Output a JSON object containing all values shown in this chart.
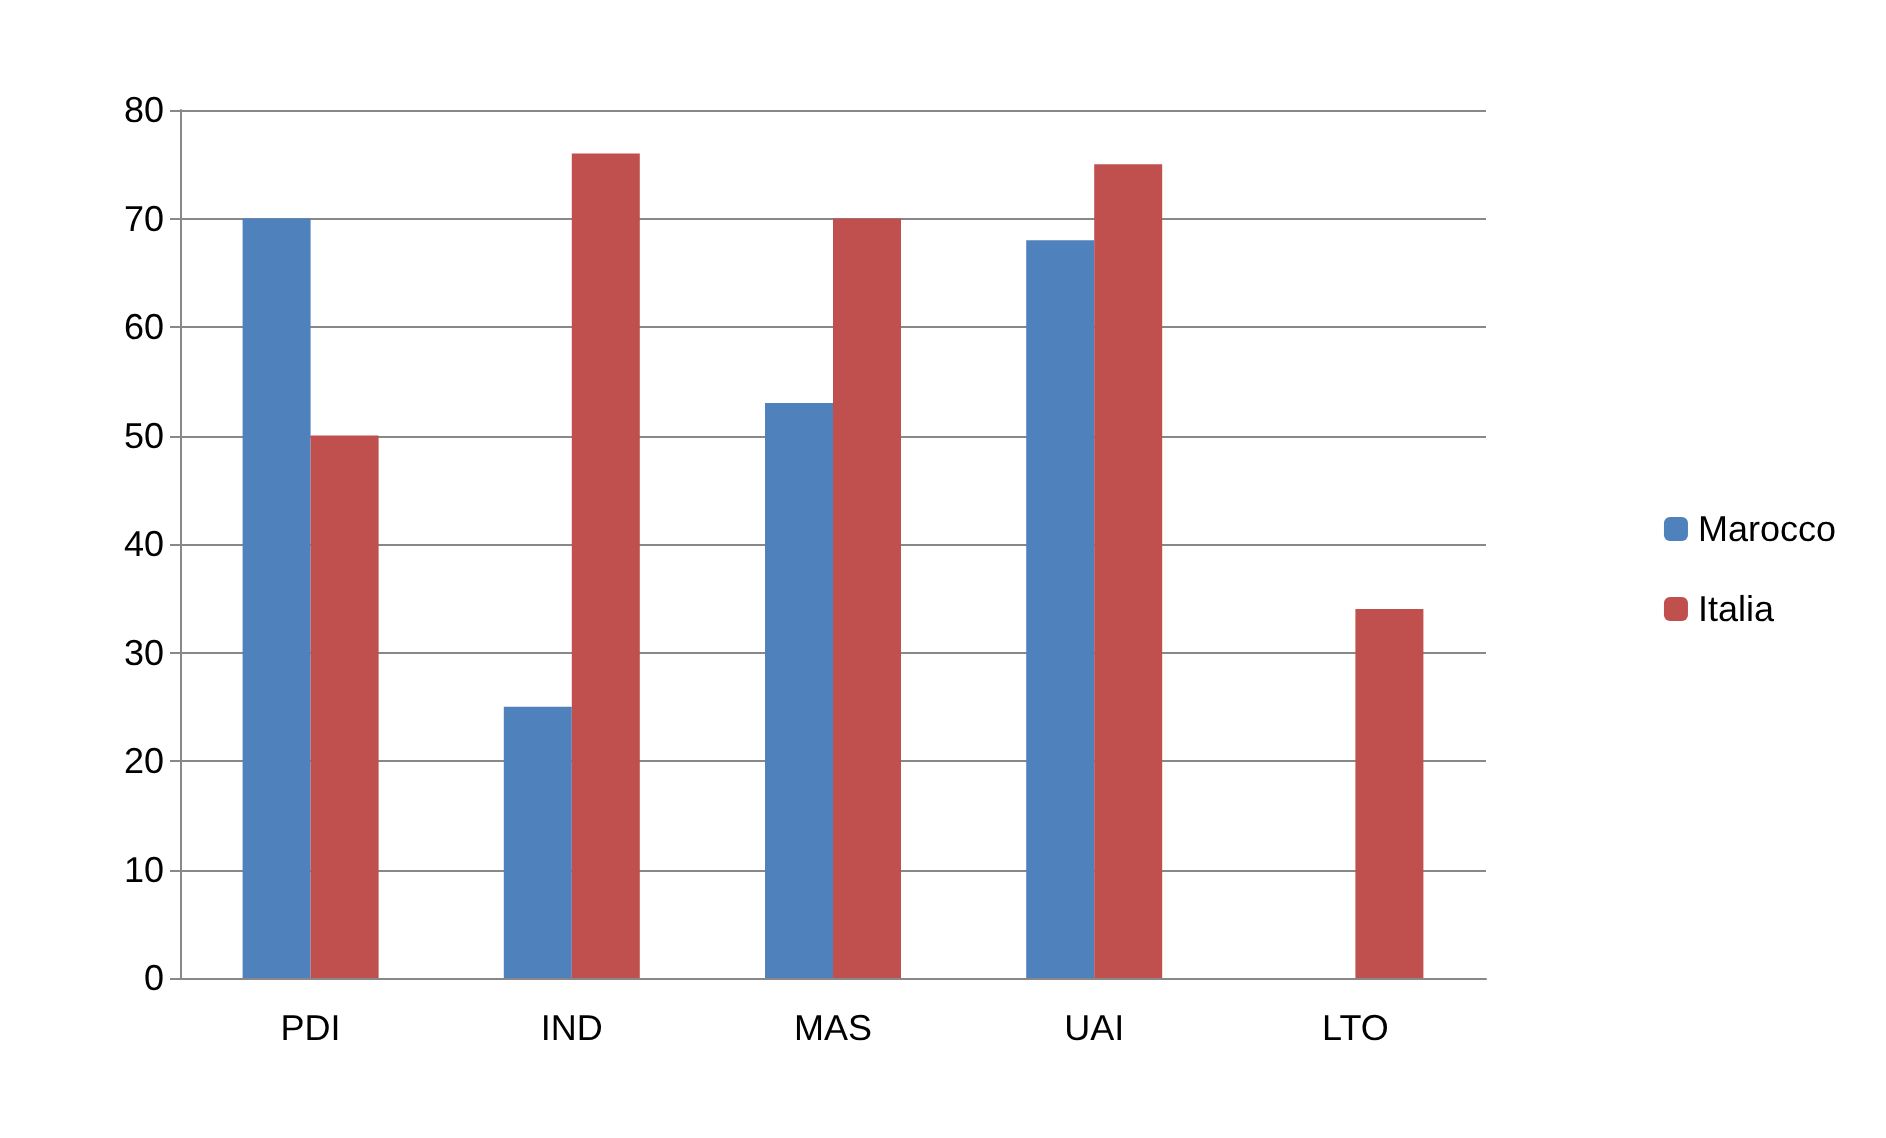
{
  "chart_data": {
    "type": "bar",
    "categories": [
      "PDI",
      "IND",
      "MAS",
      "UAI",
      "LTO"
    ],
    "series": [
      {
        "name": "Marocco",
        "color": "#4f81bd",
        "values": [
          70,
          25,
          53,
          68,
          null
        ]
      },
      {
        "name": "Italia",
        "color": "#c0504d",
        "values": [
          50,
          76,
          70,
          75,
          34
        ]
      }
    ],
    "ylim": [
      0,
      80
    ],
    "yticks": [
      0,
      10,
      20,
      30,
      40,
      50,
      60,
      70,
      80
    ],
    "grid": "y",
    "legend": "right"
  }
}
